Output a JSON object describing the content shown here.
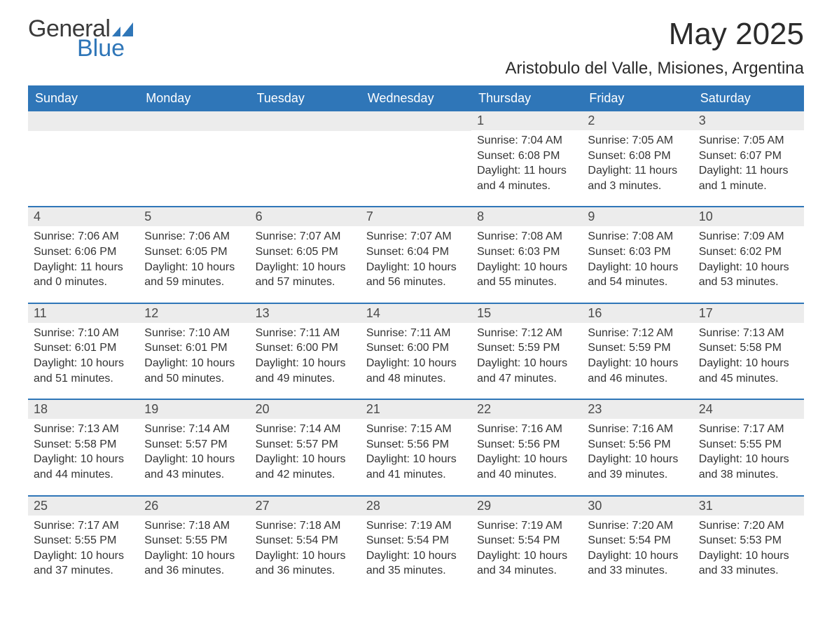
{
  "logo": {
    "text_general": "General",
    "text_blue": "Blue",
    "shape_color": "#2f76b8"
  },
  "header": {
    "month_title": "May 2025",
    "location": "Aristobulo del Valle, Misiones, Argentina"
  },
  "colors": {
    "header_bg": "#2f76b8",
    "header_text": "#ffffff",
    "daynum_bg": "#ececec",
    "body_text": "#333333",
    "week_border": "#2f76b8"
  },
  "fonts": {
    "month_title_pt": 44,
    "location_pt": 24,
    "dayhead_pt": 18,
    "daynum_pt": 18,
    "body_pt": 16
  },
  "day_names": [
    "Sunday",
    "Monday",
    "Tuesday",
    "Wednesday",
    "Thursday",
    "Friday",
    "Saturday"
  ],
  "weeks": [
    [
      {
        "day": "",
        "sunrise": "",
        "sunset": "",
        "daylight": ""
      },
      {
        "day": "",
        "sunrise": "",
        "sunset": "",
        "daylight": ""
      },
      {
        "day": "",
        "sunrise": "",
        "sunset": "",
        "daylight": ""
      },
      {
        "day": "",
        "sunrise": "",
        "sunset": "",
        "daylight": ""
      },
      {
        "day": "1",
        "sunrise": "Sunrise: 7:04 AM",
        "sunset": "Sunset: 6:08 PM",
        "daylight": "Daylight: 11 hours and 4 minutes."
      },
      {
        "day": "2",
        "sunrise": "Sunrise: 7:05 AM",
        "sunset": "Sunset: 6:08 PM",
        "daylight": "Daylight: 11 hours and 3 minutes."
      },
      {
        "day": "3",
        "sunrise": "Sunrise: 7:05 AM",
        "sunset": "Sunset: 6:07 PM",
        "daylight": "Daylight: 11 hours and 1 minute."
      }
    ],
    [
      {
        "day": "4",
        "sunrise": "Sunrise: 7:06 AM",
        "sunset": "Sunset: 6:06 PM",
        "daylight": "Daylight: 11 hours and 0 minutes."
      },
      {
        "day": "5",
        "sunrise": "Sunrise: 7:06 AM",
        "sunset": "Sunset: 6:05 PM",
        "daylight": "Daylight: 10 hours and 59 minutes."
      },
      {
        "day": "6",
        "sunrise": "Sunrise: 7:07 AM",
        "sunset": "Sunset: 6:05 PM",
        "daylight": "Daylight: 10 hours and 57 minutes."
      },
      {
        "day": "7",
        "sunrise": "Sunrise: 7:07 AM",
        "sunset": "Sunset: 6:04 PM",
        "daylight": "Daylight: 10 hours and 56 minutes."
      },
      {
        "day": "8",
        "sunrise": "Sunrise: 7:08 AM",
        "sunset": "Sunset: 6:03 PM",
        "daylight": "Daylight: 10 hours and 55 minutes."
      },
      {
        "day": "9",
        "sunrise": "Sunrise: 7:08 AM",
        "sunset": "Sunset: 6:03 PM",
        "daylight": "Daylight: 10 hours and 54 minutes."
      },
      {
        "day": "10",
        "sunrise": "Sunrise: 7:09 AM",
        "sunset": "Sunset: 6:02 PM",
        "daylight": "Daylight: 10 hours and 53 minutes."
      }
    ],
    [
      {
        "day": "11",
        "sunrise": "Sunrise: 7:10 AM",
        "sunset": "Sunset: 6:01 PM",
        "daylight": "Daylight: 10 hours and 51 minutes."
      },
      {
        "day": "12",
        "sunrise": "Sunrise: 7:10 AM",
        "sunset": "Sunset: 6:01 PM",
        "daylight": "Daylight: 10 hours and 50 minutes."
      },
      {
        "day": "13",
        "sunrise": "Sunrise: 7:11 AM",
        "sunset": "Sunset: 6:00 PM",
        "daylight": "Daylight: 10 hours and 49 minutes."
      },
      {
        "day": "14",
        "sunrise": "Sunrise: 7:11 AM",
        "sunset": "Sunset: 6:00 PM",
        "daylight": "Daylight: 10 hours and 48 minutes."
      },
      {
        "day": "15",
        "sunrise": "Sunrise: 7:12 AM",
        "sunset": "Sunset: 5:59 PM",
        "daylight": "Daylight: 10 hours and 47 minutes."
      },
      {
        "day": "16",
        "sunrise": "Sunrise: 7:12 AM",
        "sunset": "Sunset: 5:59 PM",
        "daylight": "Daylight: 10 hours and 46 minutes."
      },
      {
        "day": "17",
        "sunrise": "Sunrise: 7:13 AM",
        "sunset": "Sunset: 5:58 PM",
        "daylight": "Daylight: 10 hours and 45 minutes."
      }
    ],
    [
      {
        "day": "18",
        "sunrise": "Sunrise: 7:13 AM",
        "sunset": "Sunset: 5:58 PM",
        "daylight": "Daylight: 10 hours and 44 minutes."
      },
      {
        "day": "19",
        "sunrise": "Sunrise: 7:14 AM",
        "sunset": "Sunset: 5:57 PM",
        "daylight": "Daylight: 10 hours and 43 minutes."
      },
      {
        "day": "20",
        "sunrise": "Sunrise: 7:14 AM",
        "sunset": "Sunset: 5:57 PM",
        "daylight": "Daylight: 10 hours and 42 minutes."
      },
      {
        "day": "21",
        "sunrise": "Sunrise: 7:15 AM",
        "sunset": "Sunset: 5:56 PM",
        "daylight": "Daylight: 10 hours and 41 minutes."
      },
      {
        "day": "22",
        "sunrise": "Sunrise: 7:16 AM",
        "sunset": "Sunset: 5:56 PM",
        "daylight": "Daylight: 10 hours and 40 minutes."
      },
      {
        "day": "23",
        "sunrise": "Sunrise: 7:16 AM",
        "sunset": "Sunset: 5:56 PM",
        "daylight": "Daylight: 10 hours and 39 minutes."
      },
      {
        "day": "24",
        "sunrise": "Sunrise: 7:17 AM",
        "sunset": "Sunset: 5:55 PM",
        "daylight": "Daylight: 10 hours and 38 minutes."
      }
    ],
    [
      {
        "day": "25",
        "sunrise": "Sunrise: 7:17 AM",
        "sunset": "Sunset: 5:55 PM",
        "daylight": "Daylight: 10 hours and 37 minutes."
      },
      {
        "day": "26",
        "sunrise": "Sunrise: 7:18 AM",
        "sunset": "Sunset: 5:55 PM",
        "daylight": "Daylight: 10 hours and 36 minutes."
      },
      {
        "day": "27",
        "sunrise": "Sunrise: 7:18 AM",
        "sunset": "Sunset: 5:54 PM",
        "daylight": "Daylight: 10 hours and 36 minutes."
      },
      {
        "day": "28",
        "sunrise": "Sunrise: 7:19 AM",
        "sunset": "Sunset: 5:54 PM",
        "daylight": "Daylight: 10 hours and 35 minutes."
      },
      {
        "day": "29",
        "sunrise": "Sunrise: 7:19 AM",
        "sunset": "Sunset: 5:54 PM",
        "daylight": "Daylight: 10 hours and 34 minutes."
      },
      {
        "day": "30",
        "sunrise": "Sunrise: 7:20 AM",
        "sunset": "Sunset: 5:54 PM",
        "daylight": "Daylight: 10 hours and 33 minutes."
      },
      {
        "day": "31",
        "sunrise": "Sunrise: 7:20 AM",
        "sunset": "Sunset: 5:53 PM",
        "daylight": "Daylight: 10 hours and 33 minutes."
      }
    ]
  ]
}
